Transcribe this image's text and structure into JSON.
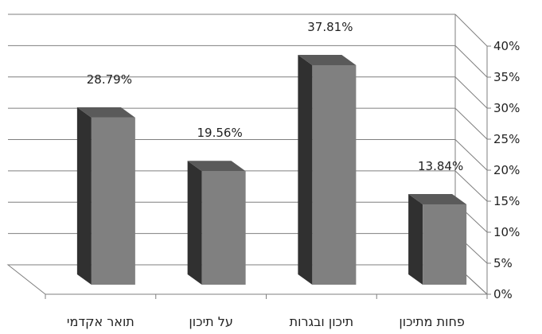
{
  "chart_data": {
    "type": "bar",
    "categories": [
      "תואר אקדמי",
      "על תיכון",
      "תיכון ובגרות",
      "פחות מתיכון"
    ],
    "values": [
      28.79,
      19.56,
      37.81,
      13.84
    ],
    "data_labels": [
      "28.79%",
      "19.56%",
      "37.81%",
      "13.84%"
    ],
    "y_ticks": [
      "0%",
      "5%",
      "10%",
      "15%",
      "20%",
      "25%",
      "30%",
      "35%",
      "40%"
    ],
    "ylim": [
      0,
      40
    ],
    "y_axis_side": "right",
    "grid": true,
    "three_d": true,
    "legend": false,
    "colors": {
      "bar_front": "#808080",
      "bar_side": "#303030",
      "bar_top": "#5a5a5a",
      "grid": "#7f7f7f"
    }
  }
}
